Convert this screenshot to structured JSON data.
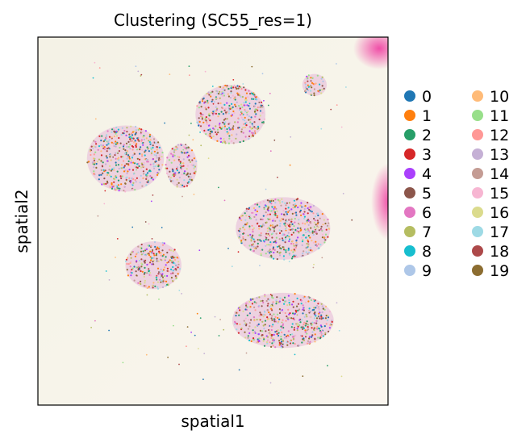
{
  "chart_data": {
    "type": "scatter",
    "title": "Clustering (SC55_res=1)",
    "xlabel": "spatial1",
    "ylabel": "spatial2",
    "grid": false,
    "ticks_visible": false,
    "background": "tissue-image",
    "legend": {
      "placement": "right",
      "columns": 2
    },
    "categories": [
      "0",
      "1",
      "2",
      "3",
      "4",
      "5",
      "6",
      "7",
      "8",
      "9",
      "10",
      "11",
      "12",
      "13",
      "14",
      "15",
      "16",
      "17",
      "18",
      "19"
    ],
    "colors": [
      "#1f77b4",
      "#ff7f0e",
      "#279e68",
      "#d62728",
      "#aa40fc",
      "#8c564b",
      "#e377c2",
      "#b5bd61",
      "#17becf",
      "#aec7e8",
      "#ffbb78",
      "#98df8a",
      "#ff9896",
      "#c5b0d5",
      "#c49c94",
      "#f7b6d2",
      "#dbdb8d",
      "#9edae5",
      "#ad494a",
      "#8c6d31"
    ],
    "tissue_regions": [
      {
        "cx": 0.25,
        "cy": 0.33,
        "rx": 0.11,
        "ry": 0.09
      },
      {
        "cx": 0.41,
        "cy": 0.35,
        "rx": 0.045,
        "ry": 0.06
      },
      {
        "cx": 0.55,
        "cy": 0.21,
        "rx": 0.1,
        "ry": 0.08
      },
      {
        "cx": 0.79,
        "cy": 0.13,
        "rx": 0.035,
        "ry": 0.03
      },
      {
        "cx": 0.33,
        "cy": 0.62,
        "rx": 0.08,
        "ry": 0.065
      },
      {
        "cx": 0.7,
        "cy": 0.52,
        "rx": 0.135,
        "ry": 0.085
      },
      {
        "cx": 0.7,
        "cy": 0.77,
        "rx": 0.145,
        "ry": 0.075
      }
    ]
  }
}
